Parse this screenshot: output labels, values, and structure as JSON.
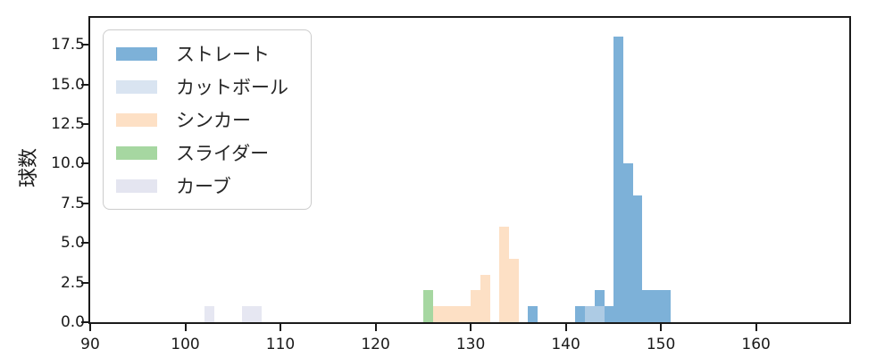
{
  "figure": {
    "ylabel": "球数",
    "background": "#ffffff",
    "spine_color": "#1a1a1a",
    "text_color": "#1a1a1a"
  },
  "chart_data": {
    "type": "bar",
    "subtype": "overlaid-histogram",
    "title": "",
    "xlabel": "",
    "ylabel": "球数",
    "xlim": [
      90,
      169.8
    ],
    "ylim": [
      0,
      19.2
    ],
    "x_ticks": [
      90,
      100,
      110,
      120,
      130,
      140,
      150,
      160
    ],
    "y_ticks": [
      0.0,
      2.5,
      5.0,
      7.5,
      10.0,
      12.5,
      15.0,
      17.5
    ],
    "bin_width": 1,
    "grid": false,
    "legend_position": "upper left",
    "series": [
      {
        "name": "ストレート",
        "legend_color": "#7db1d8",
        "bar_color": "#7db1d8",
        "bins": [
          {
            "x": 136,
            "count": 1
          },
          {
            "x": 141,
            "count": 1
          },
          {
            "x": 142,
            "count": 1
          },
          {
            "x": 143,
            "count": 2
          },
          {
            "x": 144,
            "count": 1
          },
          {
            "x": 145,
            "count": 18
          },
          {
            "x": 146,
            "count": 10
          },
          {
            "x": 147,
            "count": 8
          },
          {
            "x": 148,
            "count": 2
          },
          {
            "x": 149,
            "count": 2
          },
          {
            "x": 150,
            "count": 2
          }
        ]
      },
      {
        "name": "カットボール",
        "legend_color": "#d9e4f1",
        "bar_color": "#adcbe4",
        "bins": [
          {
            "x": 142,
            "count": 1
          },
          {
            "x": 143,
            "count": 1
          }
        ]
      },
      {
        "name": "シンカー",
        "legend_color": "#fde0c5",
        "bar_color": "#fde0c5",
        "bins": [
          {
            "x": 126,
            "count": 1
          },
          {
            "x": 127,
            "count": 1
          },
          {
            "x": 128,
            "count": 1
          },
          {
            "x": 129,
            "count": 1
          },
          {
            "x": 130,
            "count": 2
          },
          {
            "x": 131,
            "count": 3
          },
          {
            "x": 133,
            "count": 6
          },
          {
            "x": 134,
            "count": 4
          }
        ]
      },
      {
        "name": "スライダー",
        "legend_color": "#a6d7a1",
        "bar_color": "#a6d7a1",
        "bins": [
          {
            "x": 125,
            "count": 2
          }
        ]
      },
      {
        "name": "カーブ",
        "legend_color": "#e4e5f0",
        "bar_color": "#e6e7f2",
        "bins": [
          {
            "x": 102,
            "count": 1
          },
          {
            "x": 106,
            "count": 1
          },
          {
            "x": 107,
            "count": 1
          }
        ]
      }
    ]
  }
}
